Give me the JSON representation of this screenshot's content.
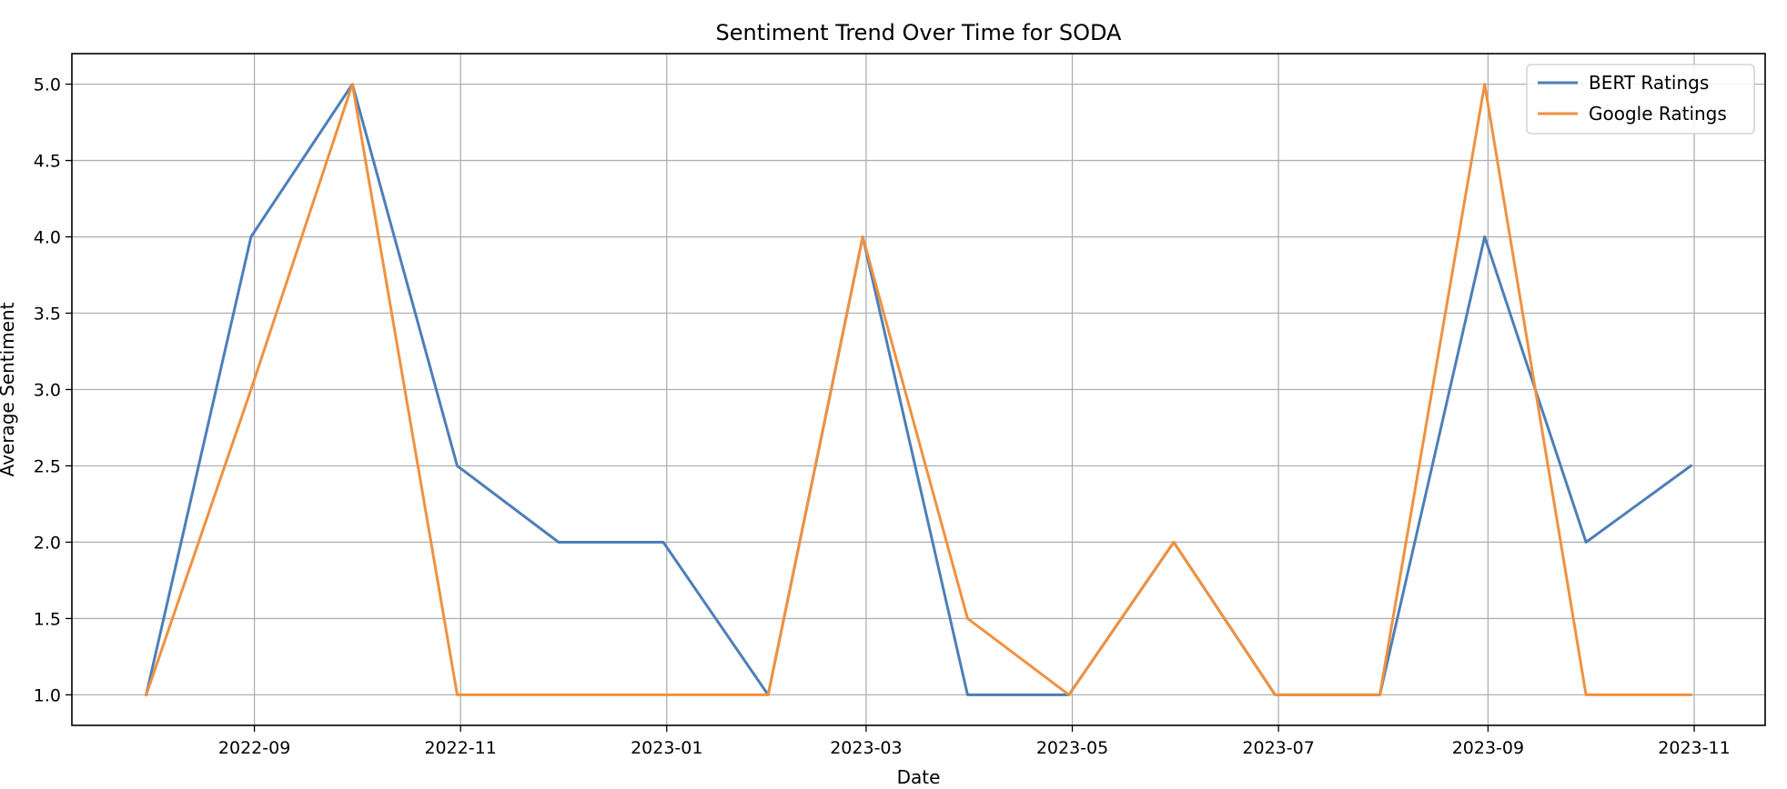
{
  "chart_data": {
    "type": "line",
    "title": "Sentiment Trend Over Time for SODA",
    "xlabel": "Date",
    "ylabel": "Average Sentiment",
    "x": [
      "2022-07-31",
      "2022-08-31",
      "2022-09-30",
      "2022-10-31",
      "2022-11-30",
      "2022-12-31",
      "2023-01-31",
      "2023-02-28",
      "2023-03-31",
      "2023-04-30",
      "2023-05-31",
      "2023-06-30",
      "2023-07-31",
      "2023-08-31",
      "2023-09-30",
      "2023-10-31"
    ],
    "series": [
      {
        "name": "BERT Ratings",
        "color": "#4c7fb8",
        "values": [
          1.0,
          4.0,
          5.0,
          2.5,
          2.0,
          2.0,
          1.0,
          4.0,
          1.0,
          1.0,
          2.0,
          1.0,
          1.0,
          4.0,
          2.0,
          2.5
        ]
      },
      {
        "name": "Google Ratings",
        "color": "#f0913f",
        "values": [
          1.0,
          3.0,
          5.0,
          1.0,
          1.0,
          1.0,
          1.0,
          4.0,
          1.5,
          1.0,
          2.0,
          1.0,
          1.0,
          5.0,
          1.0,
          1.0
        ]
      }
    ],
    "xlim": [
      "2022-07-09",
      "2023-11-22"
    ],
    "ylim": [
      0.8,
      5.2
    ],
    "xticks": [
      "2022-09",
      "2022-11",
      "2023-01",
      "2023-03",
      "2023-05",
      "2023-07",
      "2023-09",
      "2023-11"
    ],
    "yticks": [
      "1.0",
      "1.5",
      "2.0",
      "2.5",
      "3.0",
      "3.5",
      "4.0",
      "4.5",
      "5.0"
    ],
    "grid": true,
    "legend_position": "top-right"
  }
}
